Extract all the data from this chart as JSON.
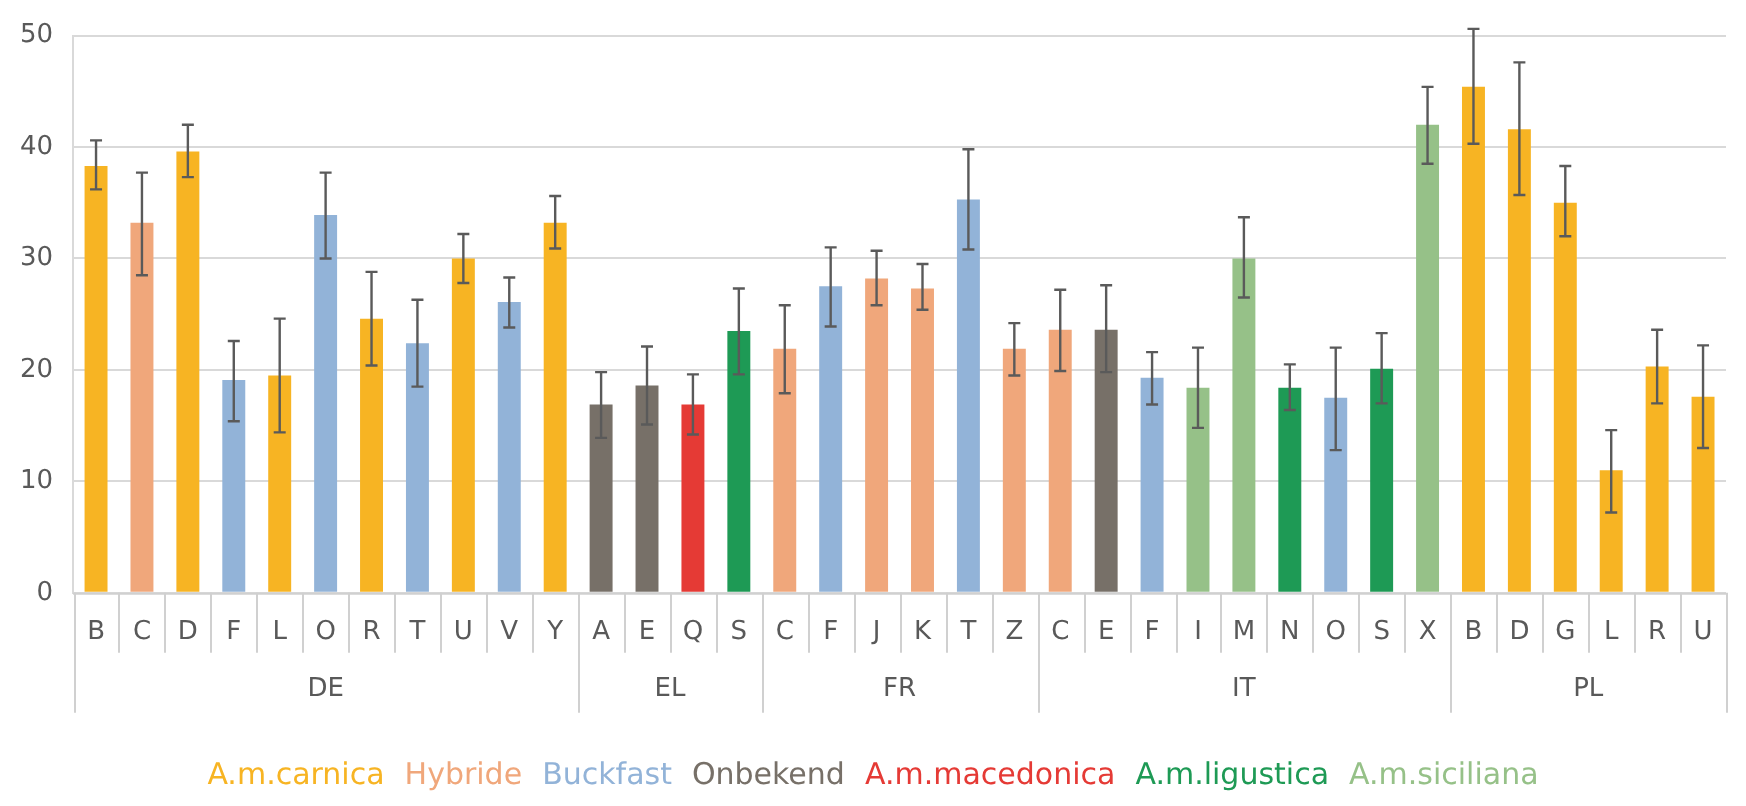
{
  "chart_data": {
    "type": "bar",
    "categories": [
      "B",
      "C",
      "D",
      "F",
      "L",
      "O",
      "R",
      "T",
      "U",
      "V",
      "Y",
      "A",
      "E",
      "Q",
      "S",
      "C",
      "F",
      "J",
      "K",
      "T",
      "Z",
      "C",
      "E",
      "F",
      "I",
      "M",
      "N",
      "O",
      "S",
      "X",
      "B",
      "D",
      "G",
      "L",
      "R",
      "U"
    ],
    "series": [
      {
        "name": "A.m.carnica",
        "color": "#f7b423",
        "values": [
          38.3,
          null,
          39.6,
          null,
          19.5,
          null,
          24.6,
          null,
          30,
          null,
          33.2,
          null,
          null,
          null,
          null,
          null,
          null,
          null,
          null,
          null,
          null,
          null,
          null,
          null,
          null,
          null,
          null,
          null,
          null,
          null,
          45.4,
          41.6,
          35,
          11,
          20.3,
          17.6
        ],
        "errors": [
          [
            36.2,
            40.6
          ],
          null,
          [
            37.3,
            42
          ],
          null,
          [
            14.4,
            24.6
          ],
          null,
          [
            20.4,
            28.8
          ],
          null,
          [
            27.8,
            32.2
          ],
          null,
          [
            30.9,
            35.6
          ],
          null,
          null,
          null,
          null,
          null,
          null,
          null,
          null,
          null,
          null,
          null,
          null,
          null,
          null,
          null,
          null,
          null,
          null,
          null,
          [
            40.3,
            50.6
          ],
          [
            35.7,
            47.6
          ],
          [
            32,
            38.3
          ],
          [
            7.2,
            14.6
          ],
          [
            17,
            23.6
          ],
          [
            13,
            22.2
          ]
        ]
      },
      {
        "name": "Hybride",
        "color": "#f0a77b",
        "values": [
          null,
          33.2,
          null,
          null,
          null,
          null,
          null,
          null,
          null,
          null,
          null,
          null,
          null,
          null,
          null,
          21.9,
          null,
          28.2,
          27.3,
          null,
          21.9,
          23.6,
          null,
          null,
          null,
          null,
          null,
          null,
          null,
          null,
          null,
          null,
          null,
          null,
          null,
          null
        ],
        "errors": [
          null,
          [
            28.5,
            37.7
          ],
          null,
          null,
          null,
          null,
          null,
          null,
          null,
          null,
          null,
          null,
          null,
          null,
          null,
          [
            17.9,
            25.8
          ],
          null,
          [
            25.8,
            30.7
          ],
          [
            25.4,
            29.5
          ],
          null,
          [
            19.5,
            24.2
          ],
          [
            19.9,
            27.2
          ],
          null,
          null,
          null,
          null,
          null,
          null,
          null,
          null,
          null,
          null,
          null,
          null,
          null,
          null
        ]
      },
      {
        "name": "Buckfast",
        "color": "#92b3d8",
        "values": [
          null,
          null,
          null,
          19.1,
          null,
          33.9,
          null,
          22.4,
          null,
          26.1,
          null,
          null,
          null,
          null,
          null,
          null,
          27.5,
          null,
          null,
          35.3,
          null,
          null,
          null,
          19.3,
          null,
          null,
          null,
          17.5,
          null,
          null,
          null,
          null,
          null,
          null,
          null,
          null
        ],
        "errors": [
          null,
          null,
          null,
          [
            15.4,
            22.6
          ],
          null,
          [
            30,
            37.7
          ],
          null,
          [
            18.5,
            26.3
          ],
          null,
          [
            23.8,
            28.3
          ],
          null,
          null,
          null,
          null,
          null,
          null,
          [
            23.9,
            31
          ],
          null,
          null,
          [
            30.8,
            39.8
          ],
          null,
          null,
          null,
          [
            16.9,
            21.6
          ],
          null,
          null,
          null,
          [
            12.8,
            22
          ],
          null,
          null,
          null,
          null,
          null,
          null,
          null,
          null
        ]
      },
      {
        "name": "Onbekend",
        "color": "#777068",
        "values": [
          null,
          null,
          null,
          null,
          null,
          null,
          null,
          null,
          null,
          null,
          null,
          16.9,
          18.6,
          null,
          null,
          null,
          null,
          null,
          null,
          null,
          null,
          null,
          23.6,
          null,
          null,
          null,
          null,
          null,
          null,
          null,
          null,
          null,
          null,
          null,
          null,
          null
        ],
        "errors": [
          null,
          null,
          null,
          null,
          null,
          null,
          null,
          null,
          null,
          null,
          null,
          [
            13.9,
            19.8
          ],
          [
            15.1,
            22.1
          ],
          null,
          null,
          null,
          null,
          null,
          null,
          null,
          null,
          null,
          [
            19.8,
            27.6
          ],
          null,
          null,
          null,
          null,
          null,
          null,
          null,
          null,
          null,
          null,
          null,
          null,
          null
        ]
      },
      {
        "name": "A.m.macedonica",
        "color": "#e53a35",
        "values": [
          null,
          null,
          null,
          null,
          null,
          null,
          null,
          null,
          null,
          null,
          null,
          null,
          null,
          16.9,
          null,
          null,
          null,
          null,
          null,
          null,
          null,
          null,
          null,
          null,
          null,
          null,
          null,
          null,
          null,
          null,
          null,
          null,
          null,
          null,
          null,
          null
        ],
        "errors": [
          null,
          null,
          null,
          null,
          null,
          null,
          null,
          null,
          null,
          null,
          null,
          null,
          null,
          [
            14.2,
            19.6
          ],
          null,
          null,
          null,
          null,
          null,
          null,
          null,
          null,
          null,
          null,
          null,
          null,
          null,
          null,
          null,
          null,
          null,
          null,
          null,
          null,
          null,
          null
        ]
      },
      {
        "name": "A.m.ligustica",
        "color": "#1e9a55",
        "values": [
          null,
          null,
          null,
          null,
          null,
          null,
          null,
          null,
          null,
          null,
          null,
          null,
          null,
          null,
          23.5,
          null,
          null,
          null,
          null,
          null,
          null,
          null,
          null,
          null,
          null,
          null,
          18.4,
          null,
          20.1,
          null,
          null,
          null,
          null,
          null,
          null,
          null
        ],
        "errors": [
          null,
          null,
          null,
          null,
          null,
          null,
          null,
          null,
          null,
          null,
          null,
          null,
          null,
          null,
          [
            19.6,
            27.3
          ],
          null,
          null,
          null,
          null,
          null,
          null,
          null,
          null,
          null,
          null,
          null,
          [
            16.4,
            20.5
          ],
          null,
          [
            17,
            23.3
          ],
          null,
          null,
          null,
          null,
          null,
          null,
          null
        ]
      },
      {
        "name": "A.m.siciliana",
        "color": "#96c188",
        "values": [
          null,
          null,
          null,
          null,
          null,
          null,
          null,
          null,
          null,
          null,
          null,
          null,
          null,
          null,
          null,
          null,
          null,
          null,
          null,
          null,
          null,
          null,
          null,
          null,
          18.4,
          30,
          null,
          null,
          null,
          42,
          null,
          null,
          null,
          null,
          null,
          null
        ],
        "errors": [
          null,
          null,
          null,
          null,
          null,
          null,
          null,
          null,
          null,
          null,
          null,
          null,
          null,
          null,
          null,
          null,
          null,
          null,
          null,
          null,
          null,
          null,
          null,
          null,
          [
            14.8,
            22
          ],
          [
            26.5,
            33.7
          ],
          null,
          null,
          null,
          [
            38.5,
            45.4
          ],
          null,
          null,
          null,
          null,
          null,
          null
        ]
      }
    ],
    "annotations": [
      "DE",
      "EL",
      "FR",
      "IT",
      "PL"
    ],
    "ylim": [
      0,
      50
    ],
    "yticks": [
      0,
      10,
      20,
      30,
      40,
      50
    ],
    "grid": "y",
    "legend": "bottom"
  }
}
